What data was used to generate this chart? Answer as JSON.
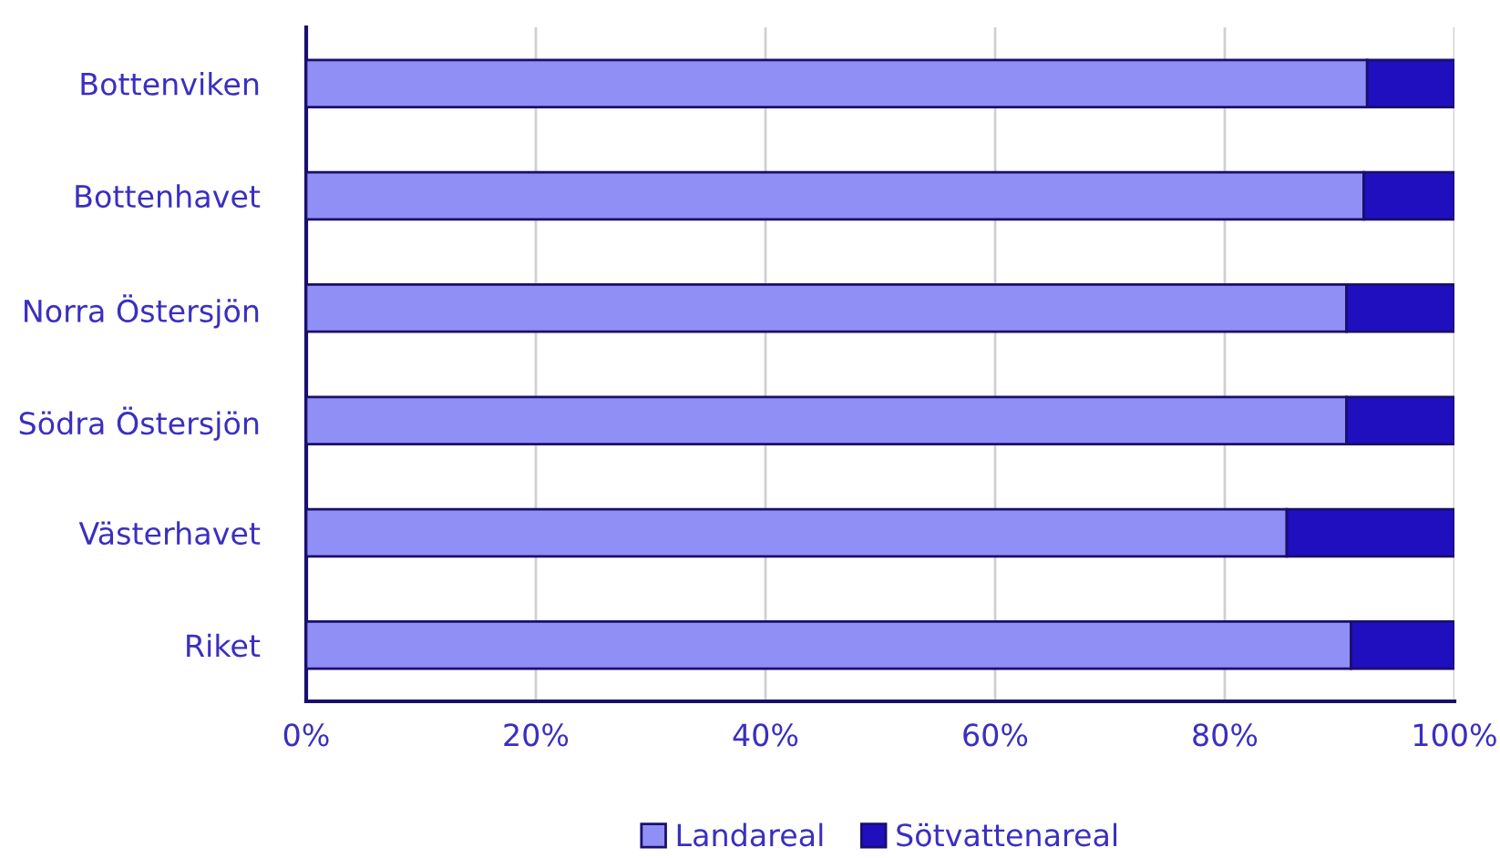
{
  "chart_data": {
    "type": "bar",
    "orientation": "horizontal",
    "stacked": true,
    "categories": [
      "Bottenviken",
      "Bottenhavet",
      "Norra Östersjön",
      "Södra Östersjön",
      "Västerhavet",
      "Riket"
    ],
    "series": [
      {
        "name": "Landareal",
        "color": "#8f8ff5",
        "values": [
          92.4,
          92.1,
          90.6,
          90.6,
          85.4,
          91.0
        ]
      },
      {
        "name": "Sötvattenareal",
        "color": "#1f0fbf",
        "values": [
          7.6,
          7.9,
          9.4,
          9.4,
          14.6,
          9.0
        ]
      }
    ],
    "xlim": [
      0,
      100
    ],
    "xticks": [
      {
        "value": 0,
        "label": "0%"
      },
      {
        "value": 20,
        "label": "20%"
      },
      {
        "value": 40,
        "label": "40%"
      },
      {
        "value": 60,
        "label": "60%"
      },
      {
        "value": 80,
        "label": "80%"
      },
      {
        "value": 100,
        "label": "100%"
      }
    ],
    "grid": "x",
    "legend": "bottom"
  }
}
